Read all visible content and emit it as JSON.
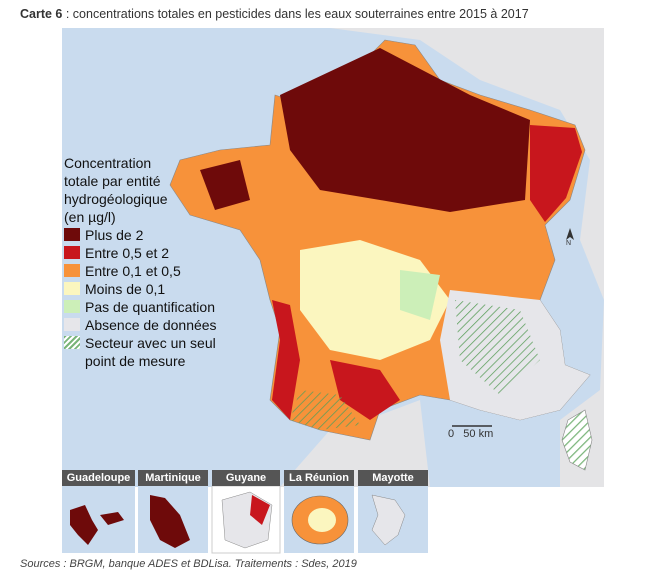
{
  "title": {
    "label": "Carte 6",
    "text": " : concentrations totales en pesticides dans les eaux souterraines entre 2015 à 2017"
  },
  "legend": {
    "title": [
      "Concentration",
      "totale par entité",
      "hydrogéologique",
      "(en µg/l)"
    ],
    "items": [
      {
        "label": "Plus de 2",
        "color": "#6e0a0a"
      },
      {
        "label": "Entre 0,5 et 2",
        "color": "#c8161d"
      },
      {
        "label": "Entre 0,1 et 0,5",
        "color": "#f7923a"
      },
      {
        "label": "Moins de 0,1",
        "color": "#fbf6bf"
      },
      {
        "label": "Pas de quantification",
        "color": "#ccefb8"
      },
      {
        "label": "Absence de données",
        "color": "#e6e6ea"
      },
      {
        "label": "Secteur avec un seul point de mesure",
        "color": "hatch"
      }
    ]
  },
  "scale": {
    "zero": "0",
    "length": "50 km"
  },
  "north": "N",
  "insets": [
    {
      "name": "Guadeloupe"
    },
    {
      "name": "Martinique"
    },
    {
      "name": "Guyane"
    },
    {
      "name": "La Réunion"
    },
    {
      "name": "Mayotte"
    }
  ],
  "source": "Sources : BRGM, banque ADES et BDLisa. Traitements : Sdes, 2019"
}
